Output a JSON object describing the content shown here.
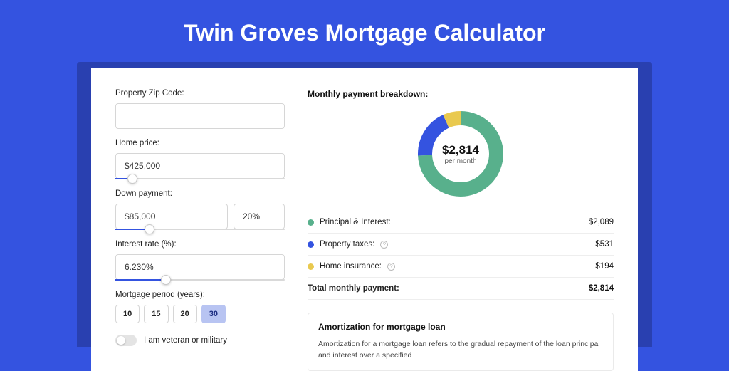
{
  "colors": {
    "page_bg": "#3453e0",
    "shadow_band": "#2940b0",
    "card_bg": "#ffffff",
    "input_border": "#d6d6d6",
    "slider_fill": "#3453e0",
    "period_active_bg": "#b8c4f2"
  },
  "title": "Twin Groves Mortgage Calculator",
  "form": {
    "zip": {
      "label": "Property Zip Code:",
      "value": ""
    },
    "home_price": {
      "label": "Home price:",
      "value": "$425,000",
      "slider_pct": 10
    },
    "down_payment": {
      "label": "Down payment:",
      "amount": "$85,000",
      "percent": "20%",
      "slider_pct": 20
    },
    "interest_rate": {
      "label": "Interest rate (%):",
      "value": "6.230%",
      "slider_pct": 30
    },
    "period": {
      "label": "Mortgage period (years):",
      "options": [
        "10",
        "15",
        "20",
        "30"
      ],
      "active_index": 3
    },
    "veteran": {
      "label": "I am veteran or military",
      "on": false
    }
  },
  "breakdown": {
    "title": "Monthly payment breakdown:",
    "center_value": "$2,814",
    "center_sub": "per month",
    "donut": {
      "radius": 50,
      "stroke": 20,
      "slices": [
        {
          "key": "principal_interest",
          "label": "Principal & Interest:",
          "value": "$2,089",
          "color": "#58b08c",
          "pct": 74.2
        },
        {
          "key": "property_taxes",
          "label": "Property taxes:",
          "value": "$531",
          "color": "#3453e0",
          "pct": 18.9,
          "info": true
        },
        {
          "key": "home_insurance",
          "label": "Home insurance:",
          "value": "$194",
          "color": "#e9c94f",
          "pct": 6.9,
          "info": true
        }
      ]
    },
    "total": {
      "label": "Total monthly payment:",
      "value": "$2,814"
    }
  },
  "amortization": {
    "title": "Amortization for mortgage loan",
    "text": "Amortization for a mortgage loan refers to the gradual repayment of the loan principal and interest over a specified"
  }
}
